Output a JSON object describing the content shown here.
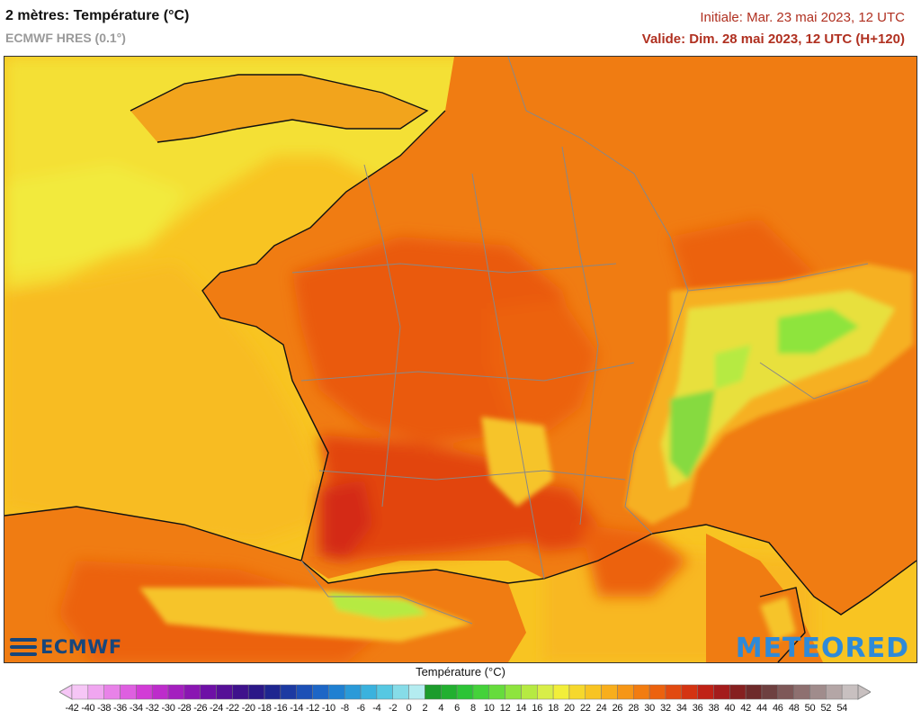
{
  "header": {
    "title": "2 mètres: Température (°C)",
    "model": "ECMWF HRES (0.1°)",
    "initial": "Initiale: Mar. 23 mai 2023, 12 UTC",
    "valid": "Valide: Dim. 28 mai 2023, 12 UTC (H+120)"
  },
  "logos": {
    "left": "ECMWF",
    "right": "METEORED"
  },
  "legend": {
    "title": "Température (°C)",
    "ticks": [
      "-42",
      "-40",
      "-38",
      "-36",
      "-34",
      "-32",
      "-30",
      "-28",
      "-26",
      "-24",
      "-22",
      "-20",
      "-18",
      "-16",
      "-14",
      "-12",
      "-10",
      "-8",
      "-6",
      "-4",
      "-2",
      "0",
      "2",
      "4",
      "6",
      "8",
      "10",
      "12",
      "14",
      "16",
      "18",
      "20",
      "22",
      "24",
      "26",
      "28",
      "30",
      "32",
      "34",
      "36",
      "38",
      "40",
      "42",
      "44",
      "46",
      "48",
      "50",
      "52",
      "54"
    ],
    "colors": [
      "#f6c6f6",
      "#f0a6f0",
      "#e882e8",
      "#de5fe0",
      "#d23cd6",
      "#bd2ccb",
      "#a41fbf",
      "#8a16b2",
      "#6e10a6",
      "#561097",
      "#3f128c",
      "#2b1888",
      "#1e2690",
      "#1c3aa2",
      "#1c50b6",
      "#1d66c6",
      "#1f80d2",
      "#2a9ad8",
      "#3ab2de",
      "#56c8e2",
      "#86dce8",
      "#b4ecf0",
      "#1c9c2c",
      "#22b030",
      "#2cc436",
      "#44d23a",
      "#66dc3c",
      "#8ee43e",
      "#b6ea42",
      "#d8ee48",
      "#f2ee3a",
      "#f6d82c",
      "#f8c422",
      "#f8ae1c",
      "#f69616",
      "#f27c10",
      "#ec620e",
      "#e24a10",
      "#d43412",
      "#c02216",
      "#a41c1c",
      "#862020",
      "#6e2a2a",
      "#6e4040",
      "#7e5858",
      "#8e7070",
      "#a08c8c",
      "#b4a6a6",
      "#c8c0c0"
    ]
  }
}
